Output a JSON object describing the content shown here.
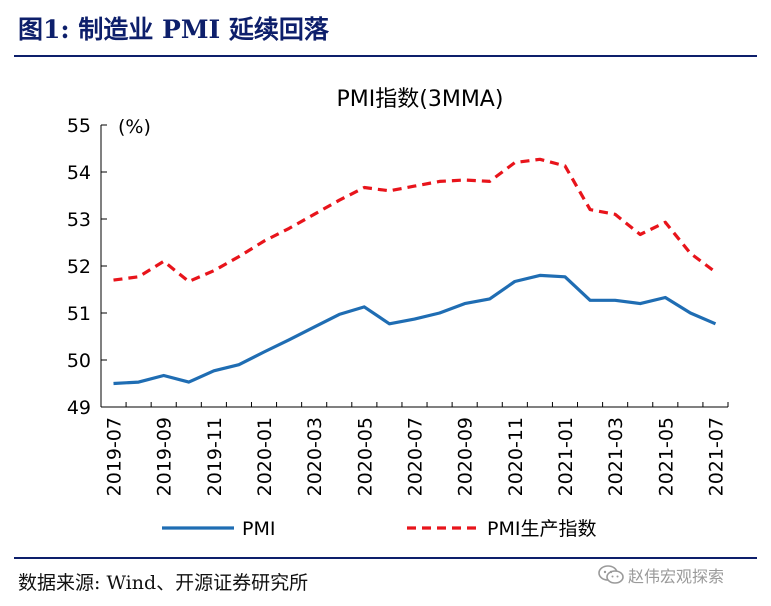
{
  "figure": {
    "title": "图1:  制造业 PMI 延续回落",
    "source": "数据来源:  Wind、开源证券研究所",
    "watermark": "赵伟宏观探索",
    "watermark_icon": "wechat-icon"
  },
  "colors": {
    "pmi": "#1f6db3",
    "production": "#e8141b",
    "title": "#0d1f6b"
  },
  "chart_data": {
    "type": "line",
    "title": "PMI指数(3MMA)",
    "unit_label": "(%)",
    "xlabel": "",
    "ylabel": "",
    "ylim": [
      49,
      55
    ],
    "yticks": [
      49,
      50,
      51,
      52,
      53,
      54,
      55
    ],
    "grid": false,
    "legend": "bottom",
    "x": [
      "2019-07",
      "2019-08",
      "2019-09",
      "2019-10",
      "2019-11",
      "2019-12",
      "2020-01",
      "2020-02",
      "2020-03",
      "2020-04",
      "2020-05",
      "2020-06",
      "2020-07",
      "2020-08",
      "2020-09",
      "2020-10",
      "2020-11",
      "2020-12",
      "2021-01",
      "2021-02",
      "2021-03",
      "2021-04",
      "2021-05",
      "2021-06",
      "2021-07"
    ],
    "xtick_labels": [
      "2019-07",
      "2019-09",
      "2019-11",
      "2020-01",
      "2020-03",
      "2020-05",
      "2020-07",
      "2020-09",
      "2020-11",
      "2021-01",
      "2021-03",
      "2021-05",
      "2021-07"
    ],
    "series": [
      {
        "name": "PMI",
        "style": "solid",
        "values": [
          49.5,
          49.53,
          49.67,
          49.53,
          49.77,
          49.9,
          50.17,
          50.43,
          50.7,
          50.97,
          51.13,
          50.77,
          50.87,
          51.0,
          51.2,
          51.3,
          51.67,
          51.8,
          51.77,
          51.27,
          51.27,
          51.2,
          51.33,
          51.0,
          50.77
        ]
      },
      {
        "name": "PMI生产指数",
        "style": "dashed",
        "values": [
          51.7,
          51.77,
          52.1,
          51.67,
          51.9,
          52.2,
          52.53,
          52.8,
          53.1,
          53.4,
          53.67,
          53.6,
          53.7,
          53.8,
          53.83,
          53.8,
          54.2,
          54.27,
          54.13,
          53.2,
          53.1,
          52.67,
          52.93,
          52.27,
          51.87
        ]
      }
    ]
  }
}
